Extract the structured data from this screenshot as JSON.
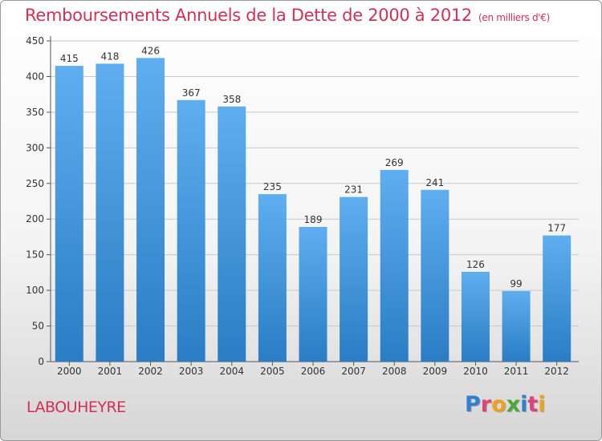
{
  "header": {
    "title": "Remboursements Annuels de la Dette de 2000 à 2012",
    "unit": "(en milliers d'€)"
  },
  "footer": {
    "commune": "LABOUHEYRE",
    "brand": "Proxiti",
    "brand_letters": [
      {
        "char": "P",
        "color": "#2f7fd6"
      },
      {
        "char": "r",
        "color": "#e0417a"
      },
      {
        "char": "o",
        "color": "#f0a21e"
      },
      {
        "char": "x",
        "color": "#4aa83a"
      },
      {
        "char": "i",
        "color": "#2f7fd6"
      },
      {
        "char": "t",
        "color": "#e0417a"
      },
      {
        "char": "i",
        "color": "#f0a21e"
      }
    ]
  },
  "colors": {
    "bar_top": "#5eaef0",
    "bar_bottom": "#2a7dc4",
    "title": "#d62f54",
    "grid": "#c8c8c8"
  },
  "chart_data": {
    "type": "bar",
    "title": "Remboursements Annuels de la Dette de 2000 à 2012",
    "categories": [
      "2000",
      "2001",
      "2002",
      "2003",
      "2004",
      "2005",
      "2006",
      "2007",
      "2008",
      "2009",
      "2010",
      "2011",
      "2012"
    ],
    "values": [
      415,
      418,
      426,
      367,
      358,
      235,
      189,
      231,
      269,
      241,
      126,
      99,
      177
    ],
    "ylim": [
      0,
      450
    ],
    "yticks": [
      0,
      50,
      100,
      150,
      200,
      250,
      300,
      350,
      400,
      450
    ],
    "grid": true,
    "xlabel": "",
    "ylabel": ""
  }
}
